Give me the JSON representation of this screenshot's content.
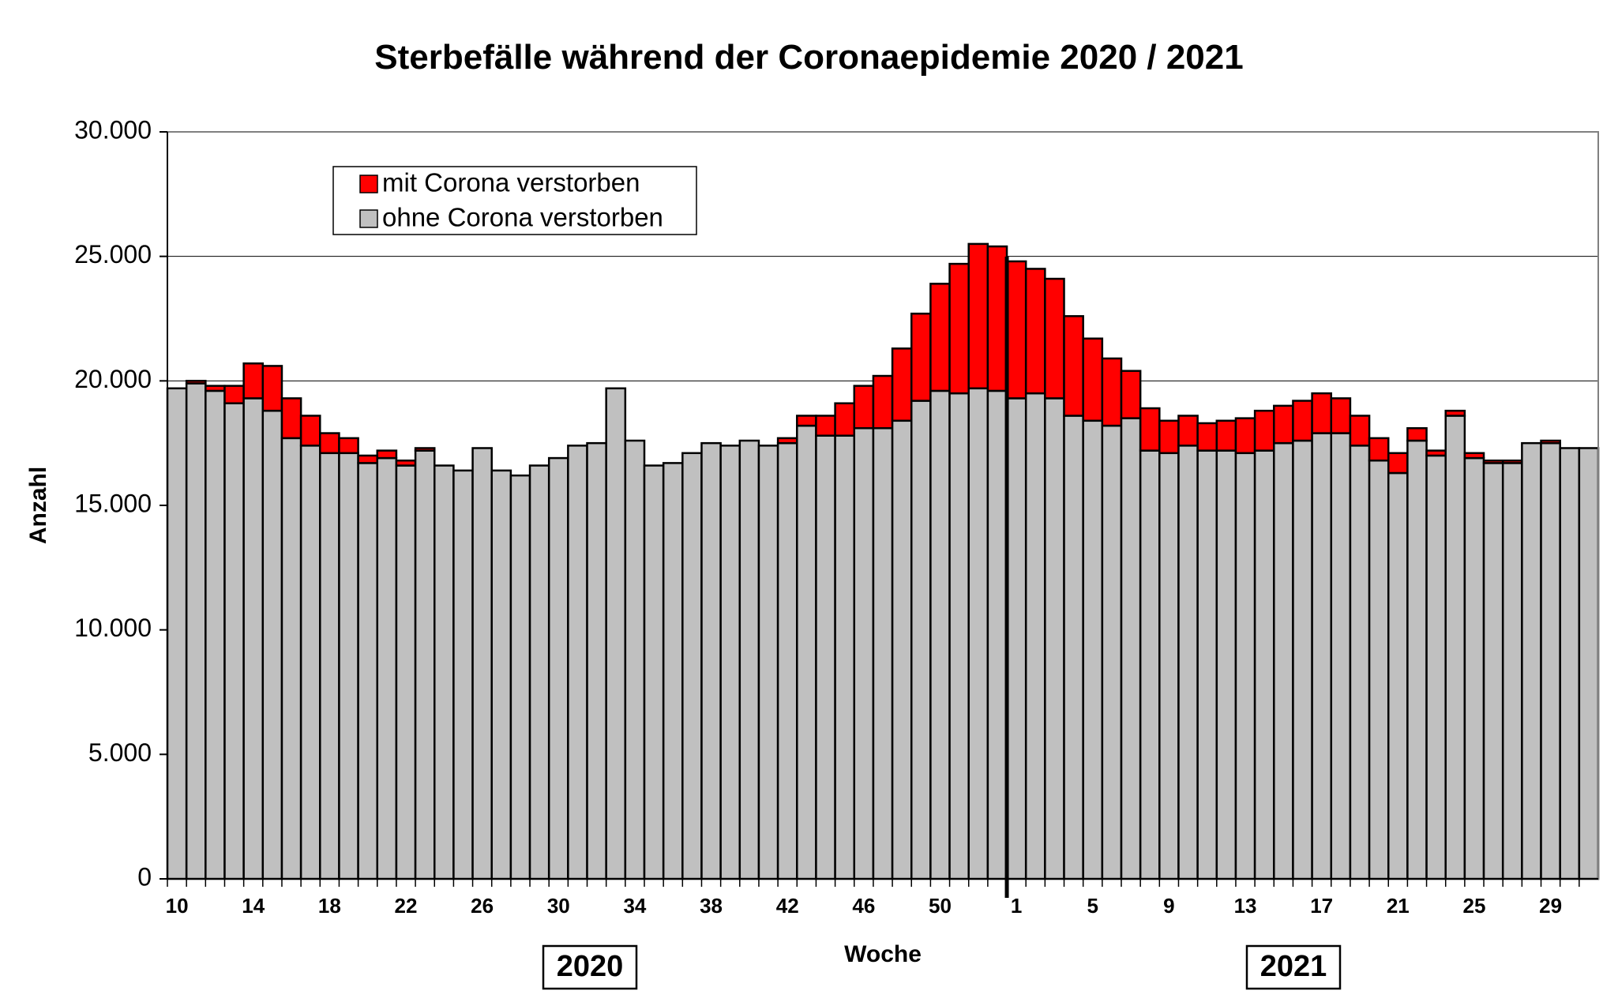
{
  "chart_data": {
    "type": "bar",
    "stacked": true,
    "title": "Sterbefälle während der Coronaepidemie 2020 / 2021",
    "xlabel": "Woche",
    "ylabel": "Anzahl",
    "ylim": [
      0,
      30000
    ],
    "yticks": [
      0,
      5000,
      10000,
      15000,
      20000,
      25000,
      30000
    ],
    "ytick_labels": [
      "0",
      "5.000",
      "10.000",
      "15.000",
      "20.000",
      "25.000",
      "30.000"
    ],
    "grid": "horizontal",
    "legend_position": "top-left",
    "year_labels": [
      "2020",
      "2021"
    ],
    "categories": [
      "10",
      "11",
      "12",
      "13",
      "14",
      "15",
      "16",
      "17",
      "18",
      "19",
      "20",
      "21",
      "22",
      "23",
      "24",
      "25",
      "26",
      "27",
      "28",
      "29",
      "30",
      "31",
      "32",
      "33",
      "34",
      "35",
      "36",
      "37",
      "38",
      "39",
      "40",
      "41",
      "42",
      "43",
      "44",
      "45",
      "46",
      "47",
      "48",
      "49",
      "50",
      "51",
      "52",
      "53",
      "1",
      "2",
      "3",
      "4",
      "5",
      "6",
      "7",
      "8",
      "9",
      "10",
      "11",
      "12",
      "13",
      "14",
      "15",
      "16",
      "17",
      "18",
      "19",
      "20",
      "21",
      "22",
      "23",
      "24",
      "25",
      "26",
      "27",
      "28",
      "29",
      "30",
      "31"
    ],
    "x_tick_labels": [
      "10",
      "14",
      "18",
      "22",
      "26",
      "30",
      "34",
      "38",
      "42",
      "46",
      "50",
      "1",
      "5",
      "9",
      "13",
      "17",
      "21",
      "25",
      "29"
    ],
    "series": [
      {
        "name": "ohne Corona verstorben",
        "color": "#c0c0c0",
        "values": [
          19700,
          19900,
          19600,
          19100,
          19300,
          18800,
          17700,
          17400,
          17100,
          17100,
          16700,
          16900,
          16600,
          17200,
          16600,
          16400,
          17300,
          16400,
          16200,
          16600,
          16900,
          17400,
          17500,
          19700,
          17600,
          16600,
          16700,
          17100,
          17500,
          17400,
          17600,
          17400,
          17500,
          18200,
          17800,
          17800,
          18100,
          18100,
          18400,
          19200,
          19600,
          19500,
          19700,
          19600,
          19300,
          19500,
          19300,
          18600,
          18400,
          18200,
          18500,
          17200,
          17100,
          17400,
          17200,
          17200,
          17100,
          17200,
          17500,
          17600,
          17900,
          17900,
          17400,
          16800,
          16300,
          17600,
          17000,
          18600,
          16900,
          16700,
          16700,
          17500,
          17500,
          17300,
          17300
        ]
      },
      {
        "name": "mit Corona verstorben",
        "color": "#ff0000",
        "values": [
          0,
          100,
          200,
          700,
          1400,
          1800,
          1600,
          1200,
          800,
          600,
          300,
          300,
          200,
          100,
          0,
          0,
          0,
          0,
          0,
          0,
          0,
          0,
          0,
          0,
          0,
          0,
          0,
          0,
          0,
          0,
          0,
          0,
          200,
          400,
          800,
          1300,
          1700,
          2100,
          2900,
          3500,
          4300,
          5200,
          5800,
          5800,
          5500,
          5000,
          4800,
          4000,
          3300,
          2700,
          1900,
          1700,
          1300,
          1200,
          1100,
          1200,
          1400,
          1600,
          1500,
          1600,
          1600,
          1400,
          1200,
          900,
          800,
          500,
          200,
          200,
          200,
          100,
          100,
          0,
          100,
          0,
          0
        ]
      }
    ]
  }
}
